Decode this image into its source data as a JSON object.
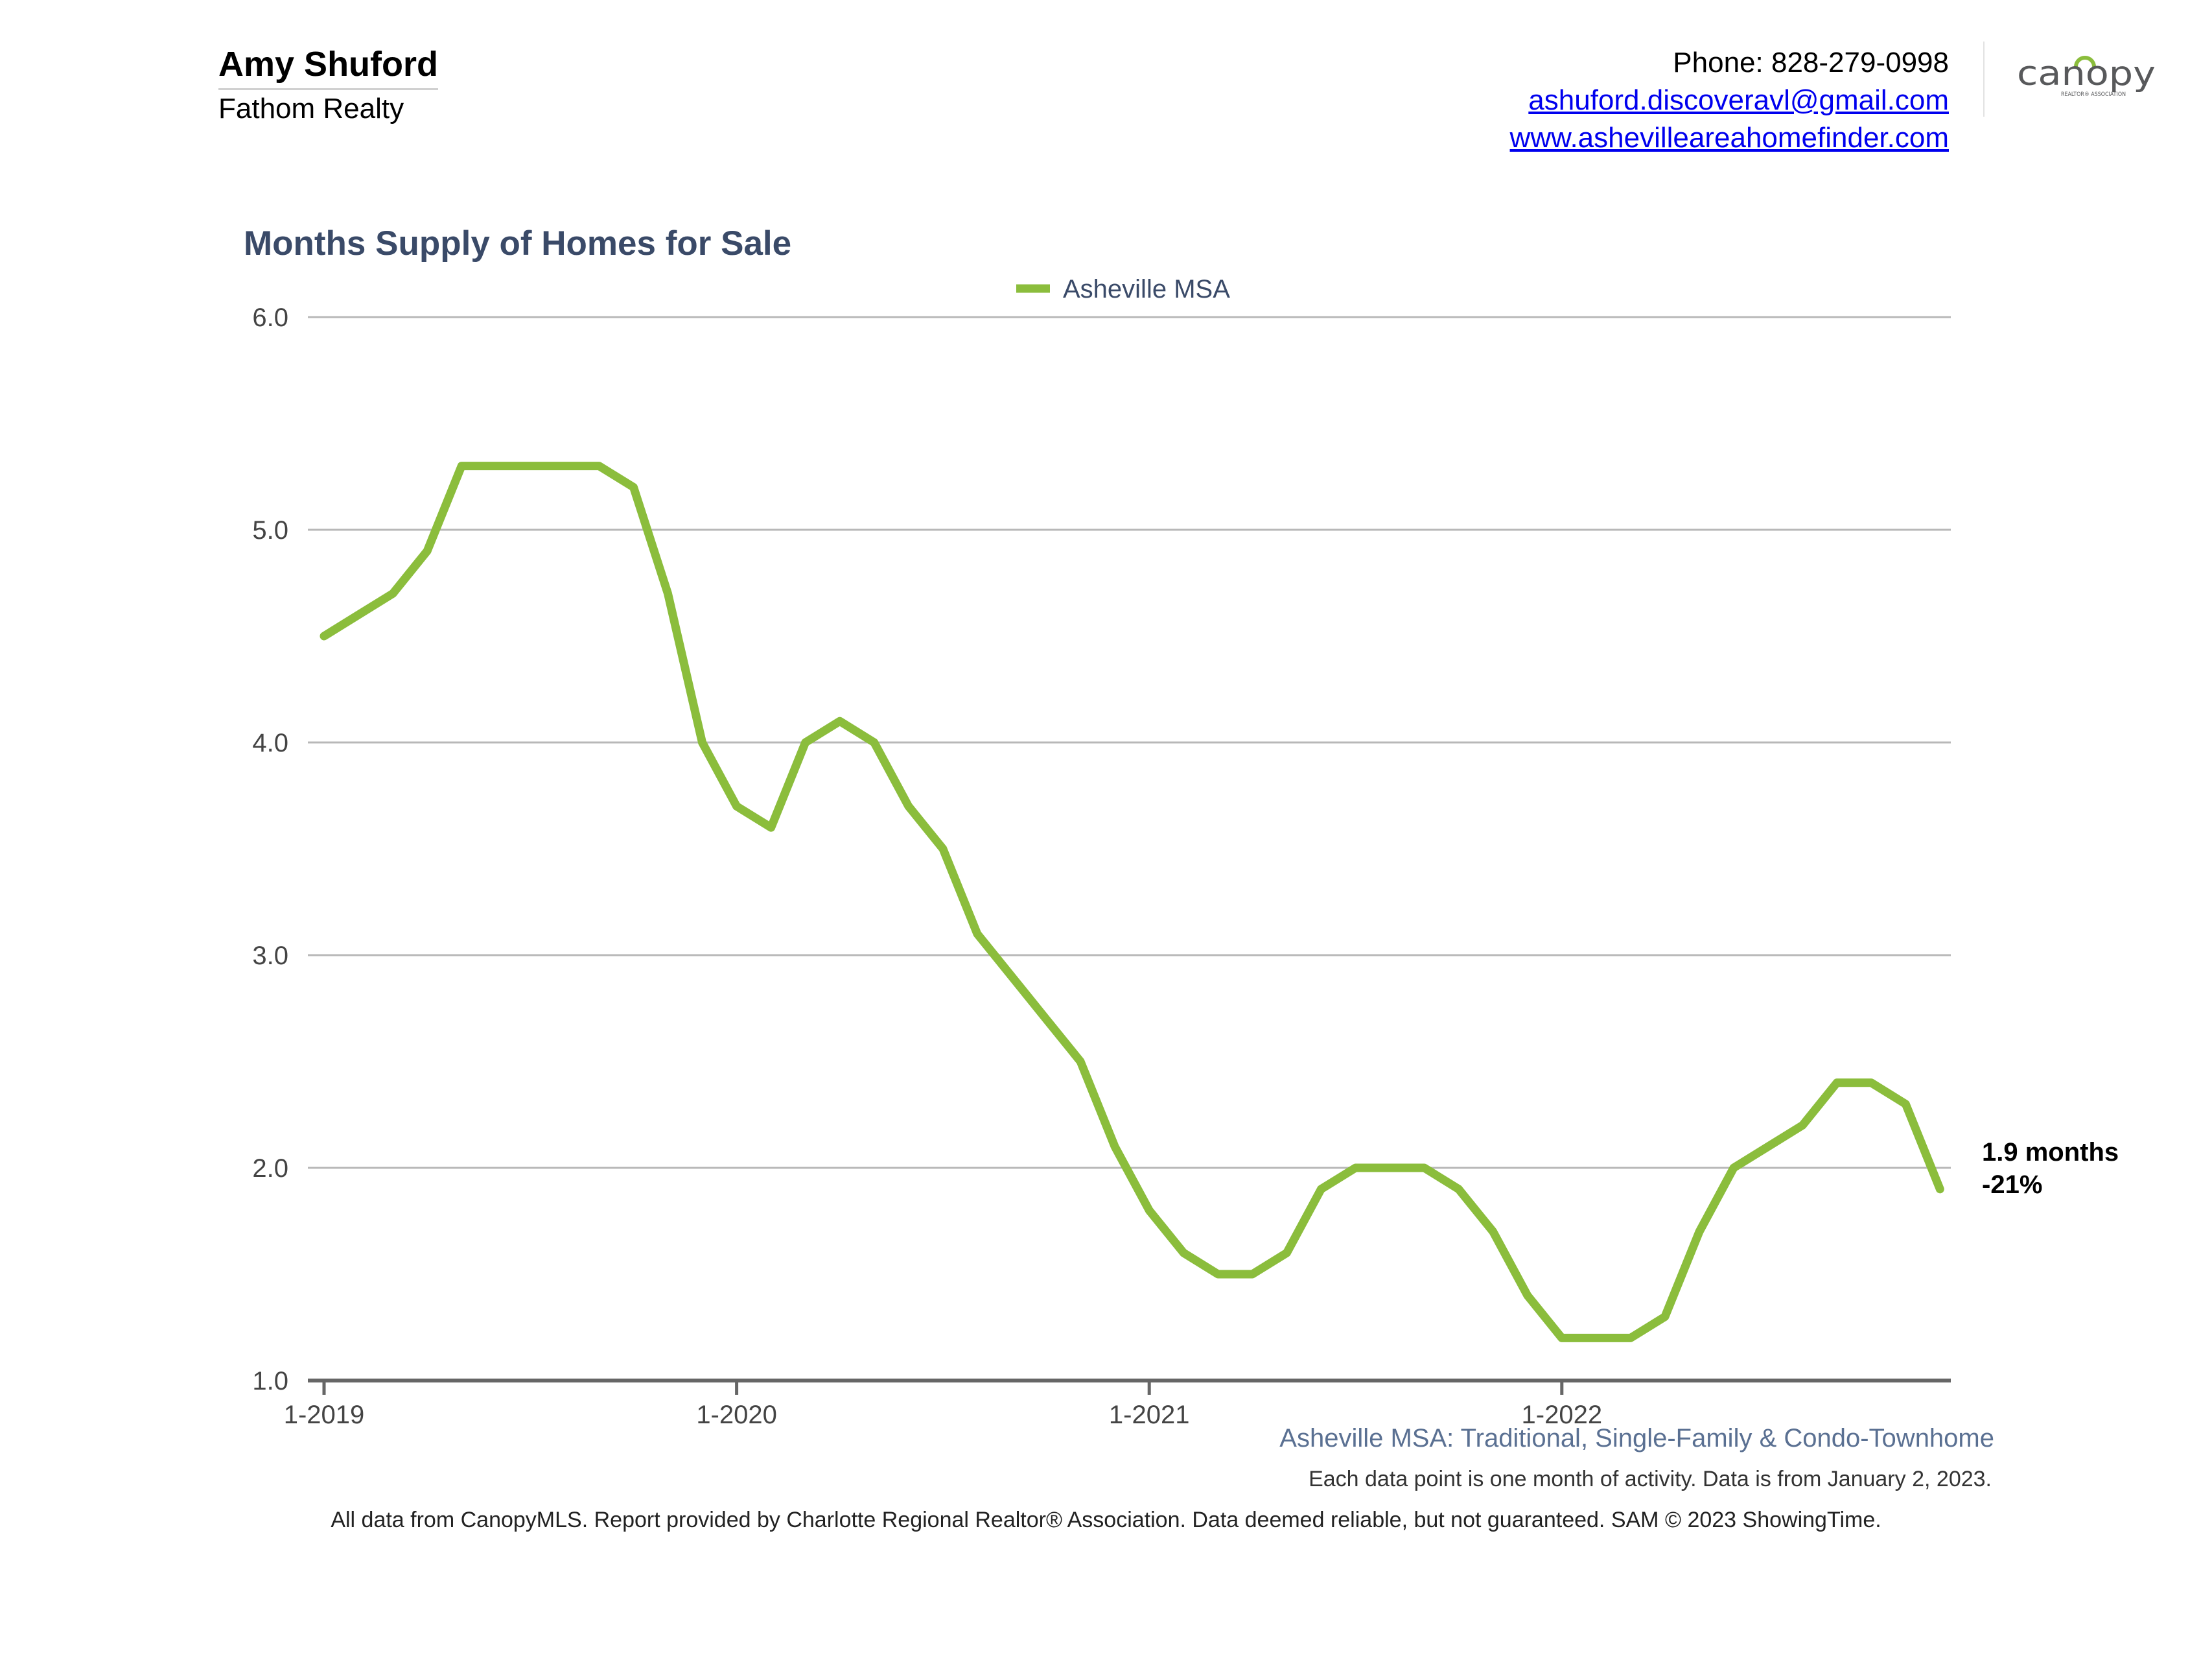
{
  "header": {
    "agent_name": "Amy Shuford",
    "company": "Fathom Realty",
    "phone": "Phone: 828-279-0998",
    "email": "ashuford.discoveravl@gmail.com",
    "website": "www.ashevilleareahomefinder.com"
  },
  "logo": {
    "text_main": "canopy",
    "text_sub": "REALTOR® ASSOCIATION",
    "color": "#58595b",
    "accent": "#8bbd3c"
  },
  "chart_title": "Months Supply of Homes for Sale",
  "chart_data": {
    "type": "line",
    "series": [
      {
        "name": "Asheville MSA",
        "color": "#8bbd3c",
        "x": [
          "2019-01",
          "2019-02",
          "2019-03",
          "2019-04",
          "2019-05",
          "2019-06",
          "2019-07",
          "2019-08",
          "2019-09",
          "2019-10",
          "2019-11",
          "2019-12",
          "2020-01",
          "2020-02",
          "2020-03",
          "2020-04",
          "2020-05",
          "2020-06",
          "2020-07",
          "2020-08",
          "2020-09",
          "2020-10",
          "2020-11",
          "2020-12",
          "2021-01",
          "2021-02",
          "2021-03",
          "2021-04",
          "2021-05",
          "2021-06",
          "2021-07",
          "2021-08",
          "2021-09",
          "2021-10",
          "2021-11",
          "2021-12",
          "2022-01",
          "2022-02",
          "2022-03",
          "2022-04",
          "2022-05",
          "2022-06",
          "2022-07",
          "2022-08",
          "2022-09",
          "2022-10",
          "2022-11",
          "2022-12"
        ],
        "values": [
          4.5,
          4.6,
          4.7,
          4.9,
          5.3,
          5.3,
          5.3,
          5.3,
          5.3,
          5.2,
          4.7,
          4.0,
          3.7,
          3.6,
          4.0,
          4.1,
          4.0,
          3.7,
          3.5,
          3.1,
          2.9,
          2.7,
          2.5,
          2.1,
          1.8,
          1.6,
          1.5,
          1.5,
          1.6,
          1.9,
          2.0,
          2.0,
          2.0,
          1.9,
          1.7,
          1.4,
          1.2,
          1.2,
          1.2,
          1.3,
          1.7,
          2.0,
          2.1,
          2.2,
          2.4,
          2.4,
          2.3,
          1.9
        ]
      }
    ],
    "y_ticks": [
      "1.0",
      "2.0",
      "3.0",
      "4.0",
      "5.0",
      "6.0"
    ],
    "ylim": [
      1.0,
      6.0
    ],
    "x_ticks": [
      {
        "index": 0,
        "label": "1-2019"
      },
      {
        "index": 12,
        "label": "1-2020"
      },
      {
        "index": 24,
        "label": "1-2021"
      },
      {
        "index": 36,
        "label": "1-2022"
      }
    ],
    "legend_position": "top-center",
    "grid": true,
    "end_annotation": {
      "value_label": "1.9 months",
      "change_label": "-21%"
    }
  },
  "subtitle": "Asheville MSA: Traditional, Single-Family & Condo-Townhome",
  "note": "Each data point is one month of activity. Data is from January 2, 2023.",
  "footer": "All data from CanopyMLS. Report provided by Charlotte Regional Realtor® Association. Data deemed reliable, but not guaranteed. SAM © 2023 ShowingTime."
}
